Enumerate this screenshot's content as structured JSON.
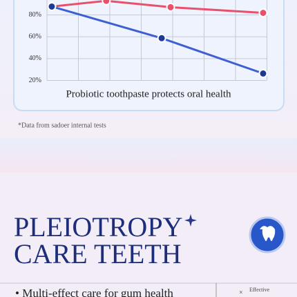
{
  "chart_data": {
    "type": "line",
    "caption": "Probiotic toothpaste protects oral health",
    "xlim": [
      0,
      100
    ],
    "ylim": [
      14,
      100
    ],
    "yticks": [
      {
        "value": 20,
        "label": "20%"
      },
      {
        "value": 40,
        "label": "40%"
      },
      {
        "value": 60,
        "label": "60%"
      },
      {
        "value": 80,
        "label": "80%"
      }
    ],
    "grid": true,
    "series": [
      {
        "color": "#e8506c",
        "x": [
          4.4,
          27.6,
          55,
          94.4
        ],
        "values": [
          87.7,
          92.9,
          87.1,
          81.9
        ]
      },
      {
        "color": "#3e5fd3",
        "x": [
          4.4,
          51.2,
          94.4
        ],
        "values": [
          87.7,
          58.7,
          26.4
        ]
      }
    ]
  },
  "footnote": "*Data from sadoer internal tests",
  "heading": {
    "line1": "PLEIOTROPY",
    "line2": "CARE TEETH"
  },
  "bullet": "• Multi-effect care for gum health",
  "badge": "Effective"
}
